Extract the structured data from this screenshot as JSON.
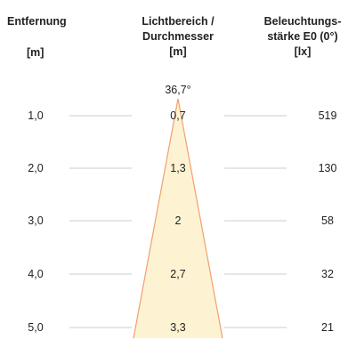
{
  "headers": {
    "distance": {
      "label": "Entfernung",
      "unit": "[m]"
    },
    "beam": {
      "line1": "Lichtbereich /",
      "line2": "Durchmesser",
      "unit": "[m]"
    },
    "illuminance": {
      "line1": "Beleuchtungs-",
      "line2": "stärke E0 (0°)",
      "unit": "[lx]"
    }
  },
  "beam_angle": "36,7°",
  "colors": {
    "cone_fill": "#fdf3d2",
    "cone_edge": "#f0a070",
    "rule": "#cccccc",
    "text": "#222222"
  },
  "rows": [
    {
      "distance": "1,0",
      "diameter": "0,7",
      "illuminance": "519"
    },
    {
      "distance": "2,0",
      "diameter": "1,3",
      "illuminance": "130"
    },
    {
      "distance": "3,0",
      "diameter": "2",
      "illuminance": "58"
    },
    {
      "distance": "4,0",
      "diameter": "2,7",
      "illuminance": "32"
    },
    {
      "distance": "5,0",
      "diameter": "3,3",
      "illuminance": "21"
    }
  ]
}
